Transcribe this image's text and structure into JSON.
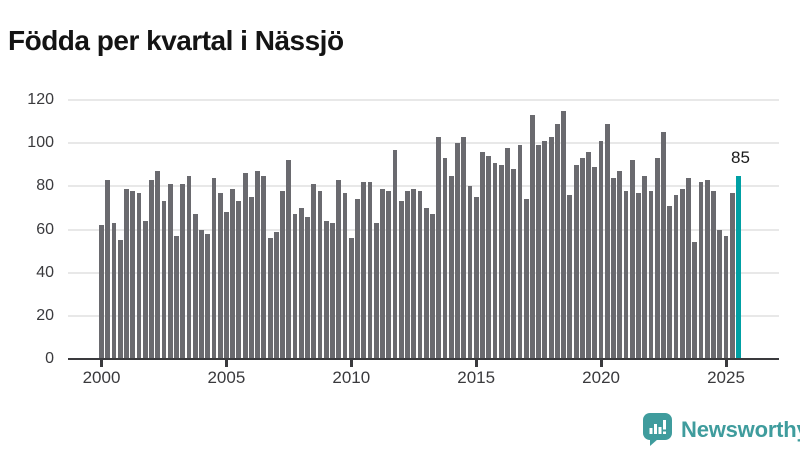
{
  "title": "Födda per kvartal i Nässjö",
  "highlight_label": "85",
  "branding": {
    "logo_text": "Newsworthy",
    "logo_icon": "bar-chart-speech-bubble-icon"
  },
  "colors": {
    "bar": "#6a6a6f",
    "highlight": "#00a0a4",
    "logo_teal": "#3f9c9d",
    "axis": "#3a3a3d",
    "grid": "#e8e8e8",
    "title_text": "#141414"
  },
  "chart_data": {
    "type": "bar",
    "title": "Födda per kvartal i Nässjö",
    "x_start": "2000 Q1",
    "x_end": "2025 Q3",
    "frequency": "quarterly",
    "values": [
      62,
      83,
      63,
      55,
      79,
      78,
      77,
      64,
      83,
      87,
      73,
      81,
      57,
      81,
      85,
      67,
      60,
      58,
      84,
      77,
      68,
      79,
      73,
      86,
      75,
      87,
      85,
      56,
      59,
      78,
      92,
      67,
      70,
      66,
      81,
      78,
      64,
      63,
      83,
      77,
      56,
      74,
      82,
      82,
      63,
      79,
      78,
      97,
      73,
      78,
      79,
      78,
      70,
      67,
      103,
      93,
      85,
      100,
      103,
      80,
      75,
      96,
      94,
      91,
      90,
      98,
      88,
      99,
      74,
      113,
      99,
      101,
      103,
      109,
      115,
      76,
      90,
      93,
      96,
      89,
      101,
      109,
      84,
      87,
      78,
      92,
      77,
      85,
      78,
      93,
      105,
      71,
      76,
      79,
      84,
      54,
      82,
      83,
      78,
      60,
      57,
      77,
      85
    ],
    "highlight_index": 102,
    "highlight_value": 85,
    "x_tick_labels": [
      "2000",
      "2005",
      "2010",
      "2015",
      "2020",
      "2025"
    ],
    "x_tick_value_indices": [
      0,
      20,
      40,
      60,
      80,
      100
    ],
    "y_ticks": [
      0,
      20,
      40,
      60,
      80,
      100,
      120
    ],
    "ylim": [
      0,
      120
    ],
    "grid": "horizontal",
    "legend": "none",
    "xlabel": "",
    "ylabel": ""
  }
}
